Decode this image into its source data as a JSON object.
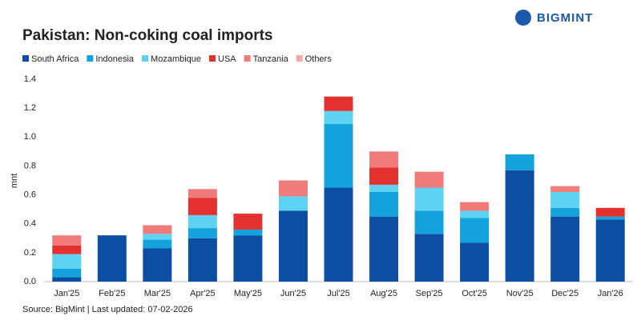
{
  "logo": "BIGMINT",
  "chart_data": {
    "type": "stacked-bar",
    "title": "Pakistan: Non-coking coal imports",
    "y_label": "mnt",
    "source": "Source: BigMint | Last updated: 07-02-2026",
    "categories": [
      "Jan'25",
      "Feb'25",
      "Mar'25",
      "Apr'25",
      "May'25",
      "Jun'25",
      "Jul'25",
      "Aug'25",
      "Sep'25",
      "Oct'25",
      "Nov'25",
      "Dec'25",
      "Jan'26"
    ],
    "series": [
      {
        "name": "South Africa",
        "color": "#0b4ea2",
        "values": [
          0.03,
          0.32,
          0.23,
          0.3,
          0.32,
          0.49,
          0.65,
          0.45,
          0.33,
          0.27,
          0.77,
          0.45,
          0.43
        ]
      },
      {
        "name": "Indonesia",
        "color": "#13a2dc",
        "values": [
          0.06,
          0,
          0.06,
          0.07,
          0.04,
          0,
          0.44,
          0.17,
          0.16,
          0.17,
          0.11,
          0.06,
          0.02
        ]
      },
      {
        "name": "Mozambique",
        "color": "#5ed3f1",
        "values": [
          0.1,
          0,
          0.04,
          0.09,
          0,
          0.1,
          0.09,
          0.05,
          0.16,
          0.05,
          0,
          0.11,
          0
        ]
      },
      {
        "name": "USA",
        "color": "#e2312f",
        "values": [
          0.06,
          0,
          0,
          0.12,
          0.11,
          0,
          0.1,
          0.12,
          0,
          0,
          0,
          0,
          0.06
        ]
      },
      {
        "name": "Tanzania",
        "color": "#f07b79",
        "values": [
          0.07,
          0,
          0.06,
          0.06,
          0,
          0.11,
          0,
          0.11,
          0.11,
          0.06,
          0,
          0.04,
          0
        ]
      },
      {
        "name": "Others",
        "color": "#f6a9a6",
        "values": [
          0,
          0,
          0,
          0,
          0,
          0,
          0,
          0,
          0,
          0,
          0,
          0,
          0
        ]
      }
    ],
    "ylim": [
      0,
      1.4
    ],
    "yticks": [
      {
        "value": 0,
        "label": "0.0"
      },
      0.2,
      0.4,
      0.6,
      0.8,
      {
        "value": 1,
        "label": "1.0"
      },
      1.2,
      1.4
    ],
    "grid": false
  }
}
